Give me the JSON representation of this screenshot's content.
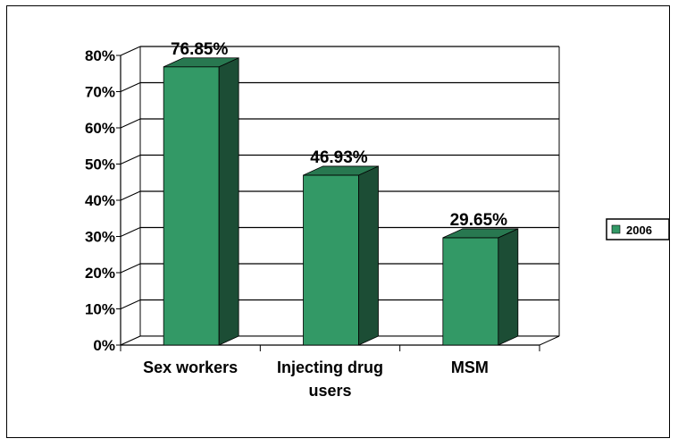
{
  "chart_data": {
    "type": "bar",
    "title": "",
    "xlabel": "",
    "ylabel": "",
    "categories": [
      [
        "Sex workers"
      ],
      [
        "Injecting drug",
        "users"
      ],
      [
        "MSM"
      ]
    ],
    "series": [
      {
        "name": "2006",
        "values": [
          76.85,
          46.93,
          29.65
        ]
      }
    ],
    "data_labels": [
      "76.85%",
      "46.93%",
      "29.65%"
    ],
    "y_ticks": [
      "0%",
      "10%",
      "20%",
      "30%",
      "40%",
      "50%",
      "60%",
      "70%",
      "80%"
    ],
    "ylim": [
      0,
      80
    ],
    "grid": true,
    "legend_position": "right",
    "three_d": true,
    "colors": {
      "bar_front": "#339966",
      "bar_side": "#1c4d35",
      "bar_top": "#287850",
      "legend_swatch": "#339966"
    }
  }
}
